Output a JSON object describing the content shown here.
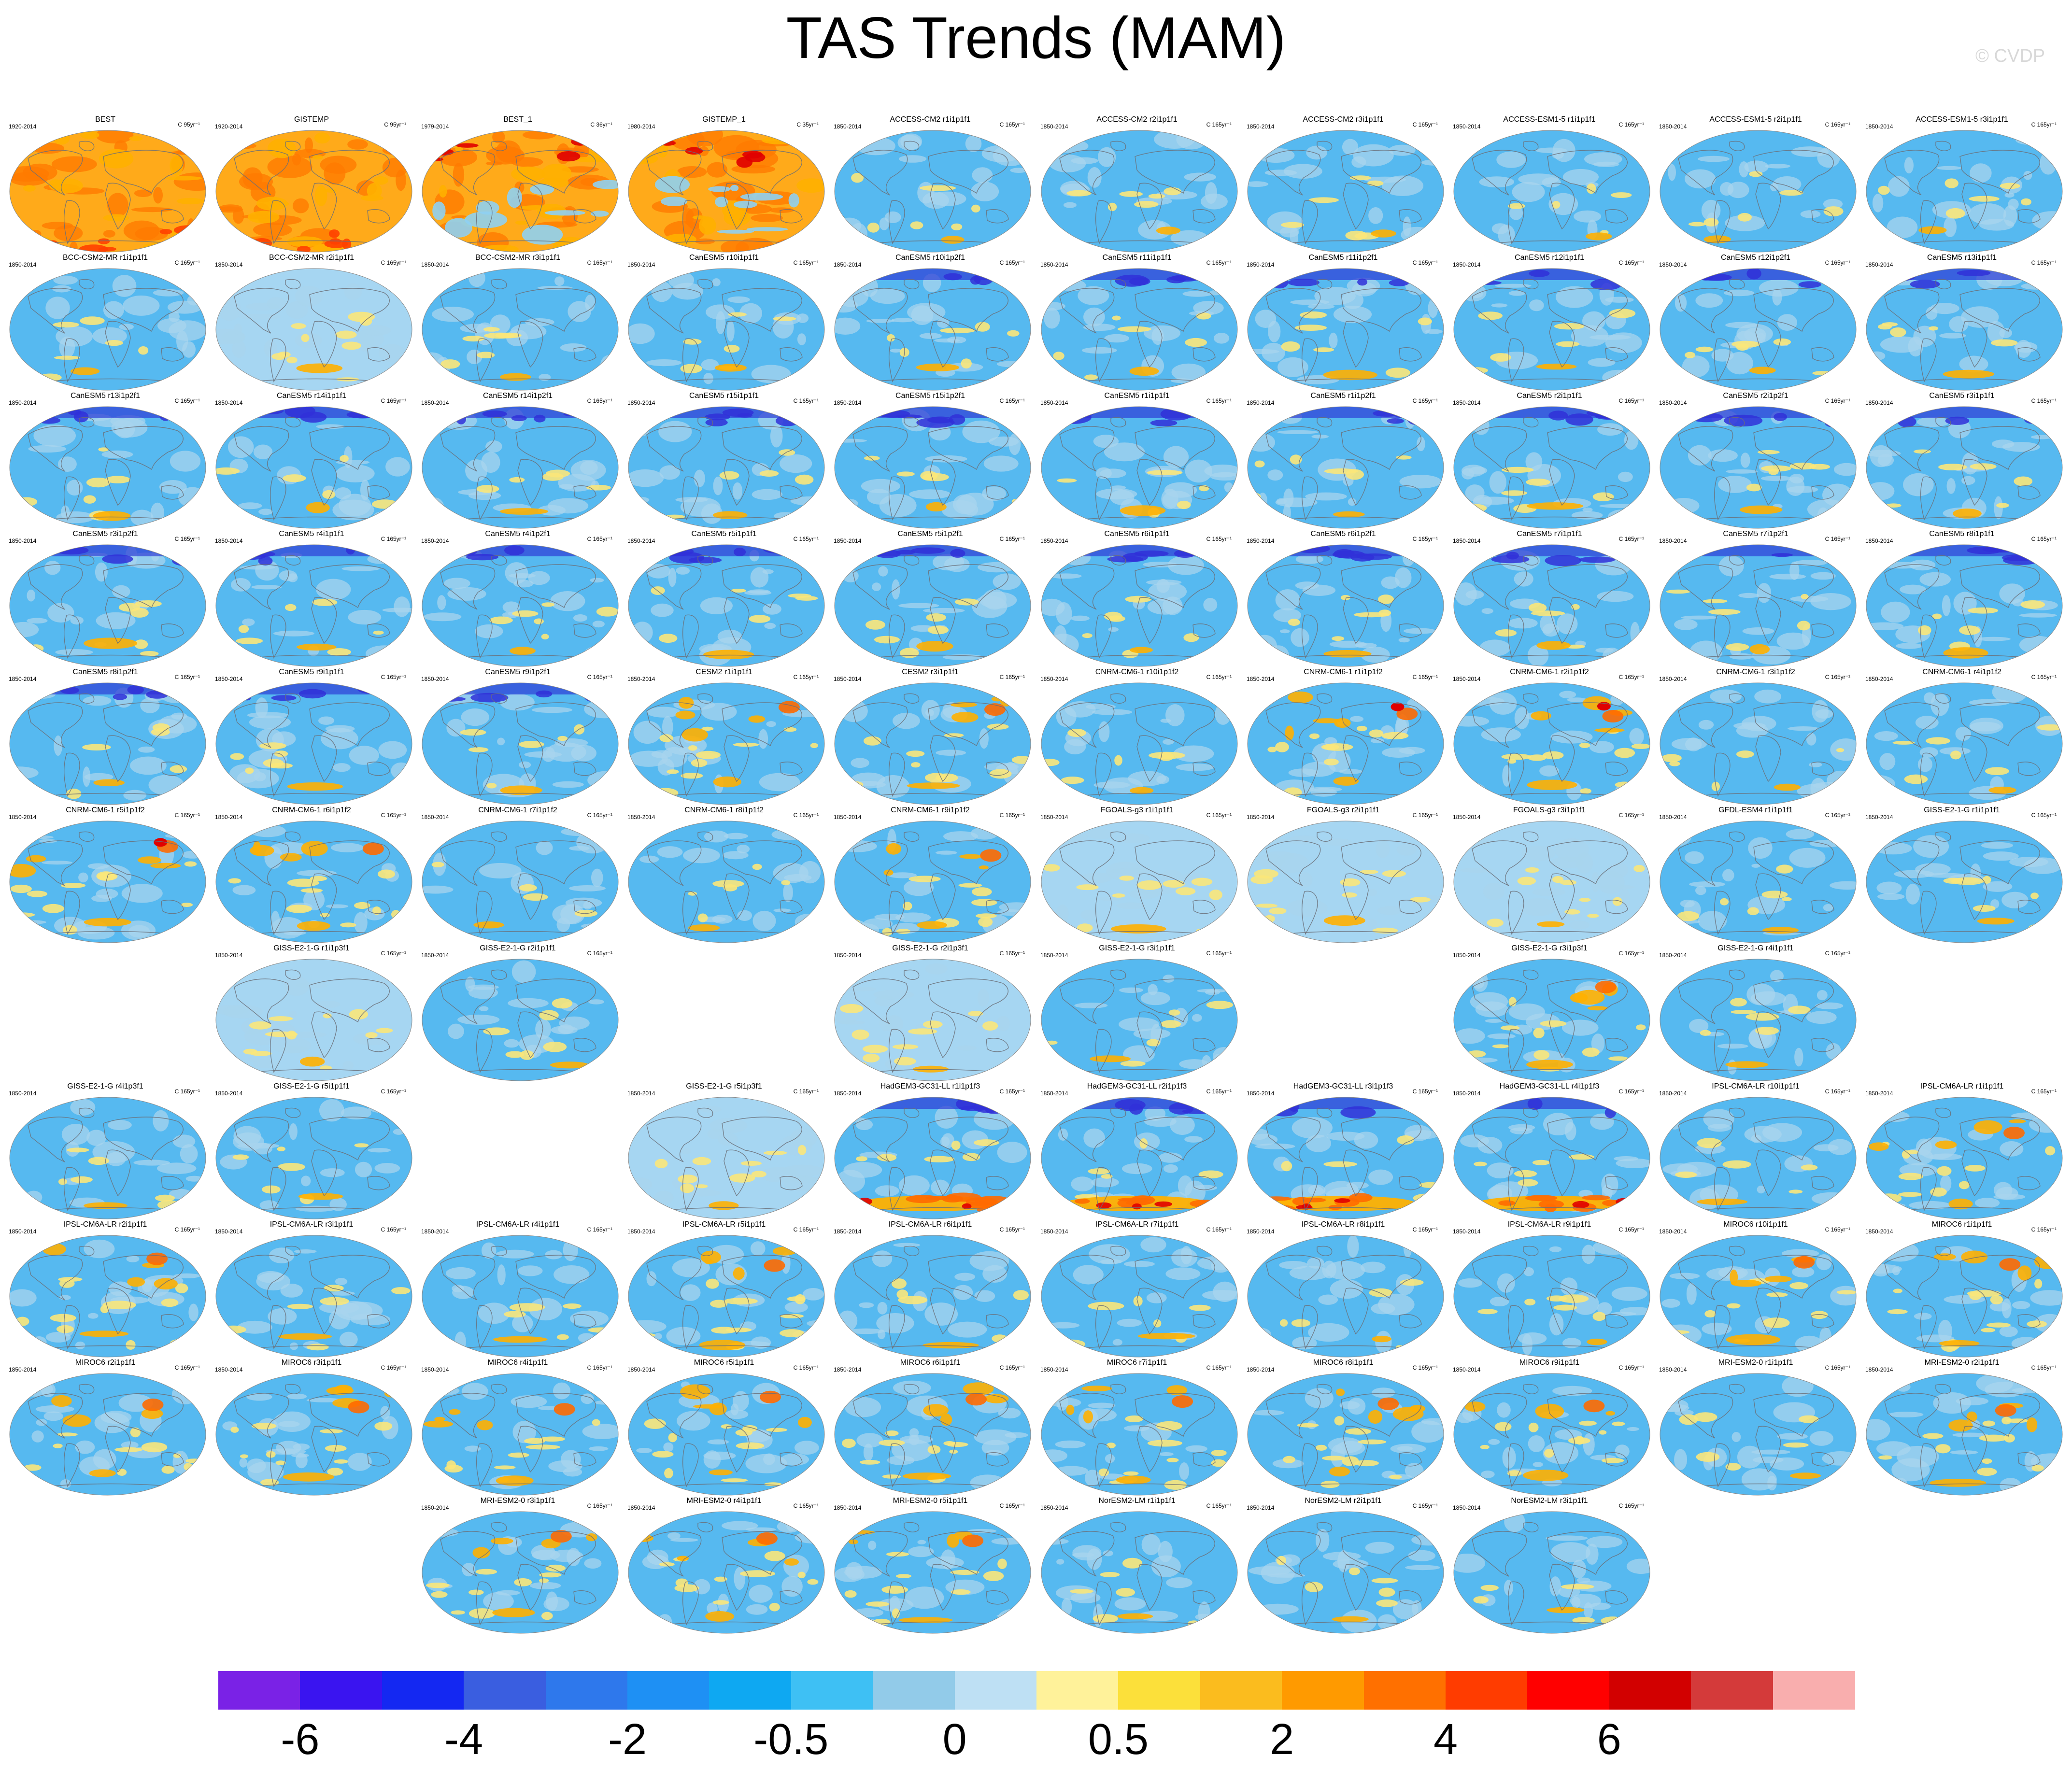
{
  "title": "TAS Trends (MAM)",
  "copyright": "© CVDP",
  "colors": {
    "ocean": "#56b9f0",
    "land": "#a8d4ee",
    "coast": "#6a6f78",
    "warm_light": "#fbe77a",
    "warm_mid": "#ffb000",
    "warm_strong": "#ff6a00",
    "hot": "#e00000",
    "cold": "#2e3cd6",
    "obs_base": "#ffaa1a",
    "obs_mid": "#ff7b00"
  },
  "panels": [
    {
      "row": 0,
      "col": 0,
      "title": "BEST",
      "years": "1920-2014",
      "units": "C 95yr⁻¹",
      "style": "obs"
    },
    {
      "row": 0,
      "col": 1,
      "title": "GISTEMP",
      "years": "1920-2014",
      "units": "C 95yr⁻¹",
      "style": "obs"
    },
    {
      "row": 0,
      "col": 2,
      "title": "BEST_1",
      "years": "1979-2014",
      "units": "C 36yr⁻¹",
      "style": "obs2"
    },
    {
      "row": 0,
      "col": 3,
      "title": "GISTEMP_1",
      "years": "1980-2014",
      "units": "C 35yr⁻¹",
      "style": "obs2"
    },
    {
      "row": 0,
      "col": 4,
      "title": "ACCESS-CM2 r1i1p1f1",
      "years": "1850-2014",
      "units": "C 165yr⁻¹",
      "style": "model"
    },
    {
      "row": 0,
      "col": 5,
      "title": "ACCESS-CM2 r2i1p1f1",
      "years": "1850-2014",
      "units": "C 165yr⁻¹",
      "style": "model"
    },
    {
      "row": 0,
      "col": 6,
      "title": "ACCESS-CM2 r3i1p1f1",
      "years": "1850-2014",
      "units": "C 165yr⁻¹",
      "style": "model"
    },
    {
      "row": 0,
      "col": 7,
      "title": "ACCESS-ESM1-5 r1i1p1f1",
      "years": "1850-2014",
      "units": "C 165yr⁻¹",
      "style": "model"
    },
    {
      "row": 0,
      "col": 8,
      "title": "ACCESS-ESM1-5 r2i1p1f1",
      "years": "1850-2014",
      "units": "C 165yr⁻¹",
      "style": "model"
    },
    {
      "row": 0,
      "col": 9,
      "title": "ACCESS-ESM1-5 r3i1p1f1",
      "years": "1850-2014",
      "units": "C 165yr⁻¹",
      "style": "model"
    },
    {
      "row": 1,
      "col": 0,
      "title": "BCC-CSM2-MR r1i1p1f1",
      "years": "1850-2014",
      "units": "C 165yr⁻¹",
      "style": "model"
    },
    {
      "row": 1,
      "col": 1,
      "title": "BCC-CSM2-MR r2i1p1f1",
      "years": "1850-2014",
      "units": "C 165yr⁻¹",
      "style": "pale"
    },
    {
      "row": 1,
      "col": 2,
      "title": "BCC-CSM2-MR r3i1p1f1",
      "years": "1850-2014",
      "units": "C 165yr⁻¹",
      "style": "model"
    },
    {
      "row": 1,
      "col": 3,
      "title": "CanESM5 r10i1p1f1",
      "years": "1850-2014",
      "units": "C 165yr⁻¹",
      "style": "model"
    },
    {
      "row": 1,
      "col": 4,
      "title": "CanESM5 r10i1p2f1",
      "years": "1850-2014",
      "units": "C 165yr⁻¹",
      "style": "cold"
    },
    {
      "row": 1,
      "col": 5,
      "title": "CanESM5 r11i1p1f1",
      "years": "1850-2014",
      "units": "C 165yr⁻¹",
      "style": "cold"
    },
    {
      "row": 1,
      "col": 6,
      "title": "CanESM5 r11i1p2f1",
      "years": "1850-2014",
      "units": "C 165yr⁻¹",
      "style": "cold"
    },
    {
      "row": 1,
      "col": 7,
      "title": "CanESM5 r12i1p1f1",
      "years": "1850-2014",
      "units": "C 165yr⁻¹",
      "style": "cold"
    },
    {
      "row": 1,
      "col": 8,
      "title": "CanESM5 r12i1p2f1",
      "years": "1850-2014",
      "units": "C 165yr⁻¹",
      "style": "cold"
    },
    {
      "row": 1,
      "col": 9,
      "title": "CanESM5 r13i1p1f1",
      "years": "1850-2014",
      "units": "C 165yr⁻¹",
      "style": "cold"
    },
    {
      "row": 2,
      "col": 0,
      "title": "CanESM5 r13i1p2f1",
      "years": "1850-2014",
      "units": "C 165yr⁻¹",
      "style": "cold"
    },
    {
      "row": 2,
      "col": 1,
      "title": "CanESM5 r14i1p1f1",
      "years": "1850-2014",
      "units": "C 165yr⁻¹",
      "style": "cold"
    },
    {
      "row": 2,
      "col": 2,
      "title": "CanESM5 r14i1p2f1",
      "years": "1850-2014",
      "units": "C 165yr⁻¹",
      "style": "cold"
    },
    {
      "row": 2,
      "col": 3,
      "title": "CanESM5 r15i1p1f1",
      "years": "1850-2014",
      "units": "C 165yr⁻¹",
      "style": "cold"
    },
    {
      "row": 2,
      "col": 4,
      "title": "CanESM5 r15i1p2f1",
      "years": "1850-2014",
      "units": "C 165yr⁻¹",
      "style": "cold"
    },
    {
      "row": 2,
      "col": 5,
      "title": "CanESM5 r1i1p1f1",
      "years": "1850-2014",
      "units": "C 165yr⁻¹",
      "style": "cold"
    },
    {
      "row": 2,
      "col": 6,
      "title": "CanESM5 r1i1p2f1",
      "years": "1850-2014",
      "units": "C 165yr⁻¹",
      "style": "cold"
    },
    {
      "row": 2,
      "col": 7,
      "title": "CanESM5 r2i1p1f1",
      "years": "1850-2014",
      "units": "C 165yr⁻¹",
      "style": "cold"
    },
    {
      "row": 2,
      "col": 8,
      "title": "CanESM5 r2i1p2f1",
      "years": "1850-2014",
      "units": "C 165yr⁻¹",
      "style": "cold"
    },
    {
      "row": 2,
      "col": 9,
      "title": "CanESM5 r3i1p1f1",
      "years": "1850-2014",
      "units": "C 165yr⁻¹",
      "style": "cold"
    },
    {
      "row": 3,
      "col": 0,
      "title": "CanESM5 r3i1p2f1",
      "years": "1850-2014",
      "units": "C 165yr⁻¹",
      "style": "cold"
    },
    {
      "row": 3,
      "col": 1,
      "title": "CanESM5 r4i1p1f1",
      "years": "1850-2014",
      "units": "C 165yr⁻¹",
      "style": "cold"
    },
    {
      "row": 3,
      "col": 2,
      "title": "CanESM5 r4i1p2f1",
      "years": "1850-2014",
      "units": "C 165yr⁻¹",
      "style": "cold"
    },
    {
      "row": 3,
      "col": 3,
      "title": "CanESM5 r5i1p1f1",
      "years": "1850-2014",
      "units": "C 165yr⁻¹",
      "style": "cold"
    },
    {
      "row": 3,
      "col": 4,
      "title": "CanESM5 r5i1p2f1",
      "years": "1850-2014",
      "units": "C 165yr⁻¹",
      "style": "cold"
    },
    {
      "row": 3,
      "col": 5,
      "title": "CanESM5 r6i1p1f1",
      "years": "1850-2014",
      "units": "C 165yr⁻¹",
      "style": "cold"
    },
    {
      "row": 3,
      "col": 6,
      "title": "CanESM5 r6i1p2f1",
      "years": "1850-2014",
      "units": "C 165yr⁻¹",
      "style": "cold"
    },
    {
      "row": 3,
      "col": 7,
      "title": "CanESM5 r7i1p1f1",
      "years": "1850-2014",
      "units": "C 165yr⁻¹",
      "style": "cold"
    },
    {
      "row": 3,
      "col": 8,
      "title": "CanESM5 r7i1p2f1",
      "years": "1850-2014",
      "units": "C 165yr⁻¹",
      "style": "cold"
    },
    {
      "row": 3,
      "col": 9,
      "title": "CanESM5 r8i1p1f1",
      "years": "1850-2014",
      "units": "C 165yr⁻¹",
      "style": "cold"
    },
    {
      "row": 4,
      "col": 0,
      "title": "CanESM5 r8i1p2f1",
      "years": "1850-2014",
      "units": "C 165yr⁻¹",
      "style": "cold"
    },
    {
      "row": 4,
      "col": 1,
      "title": "CanESM5 r9i1p1f1",
      "years": "1850-2014",
      "units": "C 165yr⁻¹",
      "style": "cold"
    },
    {
      "row": 4,
      "col": 2,
      "title": "CanESM5 r9i1p2f1",
      "years": "1850-2014",
      "units": "C 165yr⁻¹",
      "style": "cold"
    },
    {
      "row": 4,
      "col": 3,
      "title": "CESM2 r1i1p1f1",
      "years": "1850-2014",
      "units": "C 165yr⁻¹",
      "style": "warm"
    },
    {
      "row": 4,
      "col": 4,
      "title": "CESM2 r3i1p1f1",
      "years": "1850-2014",
      "units": "C 165yr⁻¹",
      "style": "warm"
    },
    {
      "row": 4,
      "col": 5,
      "title": "CNRM-CM6-1 r10i1p1f2",
      "years": "1850-2014",
      "units": "C 165yr⁻¹",
      "style": "model"
    },
    {
      "row": 4,
      "col": 6,
      "title": "CNRM-CM6-1 r1i1p1f2",
      "years": "1850-2014",
      "units": "C 165yr⁻¹",
      "style": "hot"
    },
    {
      "row": 4,
      "col": 7,
      "title": "CNRM-CM6-1 r2i1p1f2",
      "years": "1850-2014",
      "units": "C 165yr⁻¹",
      "style": "hot"
    },
    {
      "row": 4,
      "col": 8,
      "title": "CNRM-CM6-1 r3i1p1f2",
      "years": "1850-2014",
      "units": "C 165yr⁻¹",
      "style": "model"
    },
    {
      "row": 4,
      "col": 9,
      "title": "CNRM-CM6-1 r4i1p1f2",
      "years": "1850-2014",
      "units": "C 165yr⁻¹",
      "style": "model"
    },
    {
      "row": 5,
      "col": 0,
      "title": "CNRM-CM6-1 r5i1p1f2",
      "years": "1850-2014",
      "units": "C 165yr⁻¹",
      "style": "hot"
    },
    {
      "row": 5,
      "col": 1,
      "title": "CNRM-CM6-1 r6i1p1f2",
      "years": "1850-2014",
      "units": "C 165yr⁻¹",
      "style": "warm"
    },
    {
      "row": 5,
      "col": 2,
      "title": "CNRM-CM6-1 r7i1p1f2",
      "years": "1850-2014",
      "units": "C 165yr⁻¹",
      "style": "model"
    },
    {
      "row": 5,
      "col": 3,
      "title": "CNRM-CM6-1 r8i1p1f2",
      "years": "1850-2014",
      "units": "C 165yr⁻¹",
      "style": "model"
    },
    {
      "row": 5,
      "col": 4,
      "title": "CNRM-CM6-1 r9i1p1f2",
      "years": "1850-2014",
      "units": "C 165yr⁻¹",
      "style": "warm"
    },
    {
      "row": 5,
      "col": 5,
      "title": "FGOALS-g3 r1i1p1f1",
      "years": "1850-2014",
      "units": "C 165yr⁻¹",
      "style": "pale"
    },
    {
      "row": 5,
      "col": 6,
      "title": "FGOALS-g3 r2i1p1f1",
      "years": "1850-2014",
      "units": "C 165yr⁻¹",
      "style": "pale"
    },
    {
      "row": 5,
      "col": 7,
      "title": "FGOALS-g3 r3i1p1f1",
      "years": "1850-2014",
      "units": "C 165yr⁻¹",
      "style": "pale"
    },
    {
      "row": 5,
      "col": 8,
      "title": "GFDL-ESM4 r1i1p1f1",
      "years": "1850-2014",
      "units": "C 165yr⁻¹",
      "style": "model"
    },
    {
      "row": 5,
      "col": 9,
      "title": "GISS-E2-1-G r1i1p1f1",
      "years": "1850-2014",
      "units": "C 165yr⁻¹",
      "style": "model"
    },
    {
      "row": 6,
      "col": 1,
      "title": "GISS-E2-1-G r1i1p3f1",
      "years": "1850-2014",
      "units": "C 165yr⁻¹",
      "style": "pale"
    },
    {
      "row": 6,
      "col": 2,
      "title": "GISS-E2-1-G r2i1p1f1",
      "years": "1850-2014",
      "units": "C 165yr⁻¹",
      "style": "model"
    },
    {
      "row": 6,
      "col": 4,
      "title": "GISS-E2-1-G r2i1p3f1",
      "years": "1850-2014",
      "units": "C 165yr⁻¹",
      "style": "pale"
    },
    {
      "row": 6,
      "col": 5,
      "title": "GISS-E2-1-G r3i1p1f1",
      "years": "1850-2014",
      "units": "C 165yr⁻¹",
      "style": "model"
    },
    {
      "row": 6,
      "col": 7,
      "title": "GISS-E2-1-G r3i1p3f1",
      "years": "1850-2014",
      "units": "C 165yr⁻¹",
      "style": "warm"
    },
    {
      "row": 6,
      "col": 8,
      "title": "GISS-E2-1-G r4i1p1f1",
      "years": "1850-2014",
      "units": "C 165yr⁻¹",
      "style": "model"
    },
    {
      "row": 7,
      "col": 0,
      "title": "GISS-E2-1-G r4i1p3f1",
      "years": "1850-2014",
      "units": "C 165yr⁻¹",
      "style": "model"
    },
    {
      "row": 7,
      "col": 1,
      "title": "GISS-E2-1-G r5i1p1f1",
      "years": "1850-2014",
      "units": "C 165yr⁻¹",
      "style": "model"
    },
    {
      "row": 7,
      "col": 3,
      "title": "GISS-E2-1-G r5i1p3f1",
      "years": "1850-2014",
      "units": "C 165yr⁻¹",
      "style": "pale"
    },
    {
      "row": 7,
      "col": 4,
      "title": "HadGEM3-GC31-LL r1i1p1f3",
      "years": "1850-2014",
      "units": "C 165yr⁻¹",
      "style": "had"
    },
    {
      "row": 7,
      "col": 5,
      "title": "HadGEM3-GC31-LL r2i1p1f3",
      "years": "1850-2014",
      "units": "C 165yr⁻¹",
      "style": "had"
    },
    {
      "row": 7,
      "col": 6,
      "title": "HadGEM3-GC31-LL r3i1p1f3",
      "years": "1850-2014",
      "units": "C 165yr⁻¹",
      "style": "had"
    },
    {
      "row": 7,
      "col": 7,
      "title": "HadGEM3-GC31-LL r4i1p1f3",
      "years": "1850-2014",
      "units": "C 165yr⁻¹",
      "style": "had"
    },
    {
      "row": 7,
      "col": 8,
      "title": "IPSL-CM6A-LR r10i1p1f1",
      "years": "1850-2014",
      "units": "C 165yr⁻¹",
      "style": "model"
    },
    {
      "row": 7,
      "col": 9,
      "title": "IPSL-CM6A-LR r1i1p1f1",
      "years": "1850-2014",
      "units": "C 165yr⁻¹",
      "style": "warm"
    },
    {
      "row": 8,
      "col": 0,
      "title": "IPSL-CM6A-LR r2i1p1f1",
      "years": "1850-2014",
      "units": "C 165yr⁻¹",
      "style": "warm"
    },
    {
      "row": 8,
      "col": 1,
      "title": "IPSL-CM6A-LR r3i1p1f1",
      "years": "1850-2014",
      "units": "C 165yr⁻¹",
      "style": "model"
    },
    {
      "row": 8,
      "col": 2,
      "title": "IPSL-CM6A-LR r4i1p1f1",
      "years": "1850-2014",
      "units": "C 165yr⁻¹",
      "style": "model"
    },
    {
      "row": 8,
      "col": 3,
      "title": "IPSL-CM6A-LR r5i1p1f1",
      "years": "1850-2014",
      "units": "C 165yr⁻¹",
      "style": "warm"
    },
    {
      "row": 8,
      "col": 4,
      "title": "IPSL-CM6A-LR r6i1p1f1",
      "years": "1850-2014",
      "units": "C 165yr⁻¹",
      "style": "model"
    },
    {
      "row": 8,
      "col": 5,
      "title": "IPSL-CM6A-LR r7i1p1f1",
      "years": "1850-2014",
      "units": "C 165yr⁻¹",
      "style": "model"
    },
    {
      "row": 8,
      "col": 6,
      "title": "IPSL-CM6A-LR r8i1p1f1",
      "years": "1850-2014",
      "units": "C 165yr⁻¹",
      "style": "model"
    },
    {
      "row": 8,
      "col": 7,
      "title": "IPSL-CM6A-LR r9i1p1f1",
      "years": "1850-2014",
      "units": "C 165yr⁻¹",
      "style": "model"
    },
    {
      "row": 8,
      "col": 8,
      "title": "MIROC6 r10i1p1f1",
      "years": "1850-2014",
      "units": "C 165yr⁻¹",
      "style": "warm"
    },
    {
      "row": 8,
      "col": 9,
      "title": "MIROC6 r1i1p1f1",
      "years": "1850-2014",
      "units": "C 165yr⁻¹",
      "style": "warm"
    },
    {
      "row": 9,
      "col": 0,
      "title": "MIROC6 r2i1p1f1",
      "years": "1850-2014",
      "units": "C 165yr⁻¹",
      "style": "warm"
    },
    {
      "row": 9,
      "col": 1,
      "title": "MIROC6 r3i1p1f1",
      "years": "1850-2014",
      "units": "C 165yr⁻¹",
      "style": "warm"
    },
    {
      "row": 9,
      "col": 2,
      "title": "MIROC6 r4i1p1f1",
      "years": "1850-2014",
      "units": "C 165yr⁻¹",
      "style": "warm"
    },
    {
      "row": 9,
      "col": 3,
      "title": "MIROC6 r5i1p1f1",
      "years": "1850-2014",
      "units": "C 165yr⁻¹",
      "style": "warm"
    },
    {
      "row": 9,
      "col": 4,
      "title": "MIROC6 r6i1p1f1",
      "years": "1850-2014",
      "units": "C 165yr⁻¹",
      "style": "warm"
    },
    {
      "row": 9,
      "col": 5,
      "title": "MIROC6 r7i1p1f1",
      "years": "1850-2014",
      "units": "C 165yr⁻¹",
      "style": "warm"
    },
    {
      "row": 9,
      "col": 6,
      "title": "MIROC6 r8i1p1f1",
      "years": "1850-2014",
      "units": "C 165yr⁻¹",
      "style": "warm"
    },
    {
      "row": 9,
      "col": 7,
      "title": "MIROC6 r9i1p1f1",
      "years": "1850-2014",
      "units": "C 165yr⁻¹",
      "style": "warm"
    },
    {
      "row": 9,
      "col": 8,
      "title": "MRI-ESM2-0 r1i1p1f1",
      "years": "1850-2014",
      "units": "C 165yr⁻¹",
      "style": "model"
    },
    {
      "row": 9,
      "col": 9,
      "title": "MRI-ESM2-0 r2i1p1f1",
      "years": "1850-2014",
      "units": "C 165yr⁻¹",
      "style": "warm"
    },
    {
      "row": 10,
      "col": 2,
      "title": "MRI-ESM2-0 r3i1p1f1",
      "years": "1850-2014",
      "units": "C 165yr⁻¹",
      "style": "warm"
    },
    {
      "row": 10,
      "col": 3,
      "title": "MRI-ESM2-0 r4i1p1f1",
      "years": "1850-2014",
      "units": "C 165yr⁻¹",
      "style": "warm"
    },
    {
      "row": 10,
      "col": 4,
      "title": "MRI-ESM2-0 r5i1p1f1",
      "years": "1850-2014",
      "units": "C 165yr⁻¹",
      "style": "warm"
    },
    {
      "row": 10,
      "col": 5,
      "title": "NorESM2-LM r1i1p1f1",
      "years": "1850-2014",
      "units": "C 165yr⁻¹",
      "style": "model"
    },
    {
      "row": 10,
      "col": 6,
      "title": "NorESM2-LM r2i1p1f1",
      "years": "1850-2014",
      "units": "C 165yr⁻¹",
      "style": "model"
    },
    {
      "row": 10,
      "col": 7,
      "title": "NorESM2-LM r3i1p1f1",
      "years": "1850-2014",
      "units": "C 165yr⁻¹",
      "style": "model"
    }
  ],
  "colorbar": {
    "colors": [
      "#7a22e6",
      "#3a14f0",
      "#1428f2",
      "#3a5ee0",
      "#2e78ec",
      "#1e90f4",
      "#0ea8f2",
      "#3ec0f4",
      "#92cbe9",
      "#bee0f4",
      "#fff29a",
      "#fce03a",
      "#fbbc1e",
      "#ff9a00",
      "#ff7000",
      "#ff3c00",
      "#ff0000",
      "#d20000",
      "#d43a3a",
      "#f9aeae"
    ],
    "labels": [
      "-6",
      "-4",
      "-2",
      "-0.5",
      "0",
      "0.5",
      "2",
      "4",
      "6"
    ]
  }
}
